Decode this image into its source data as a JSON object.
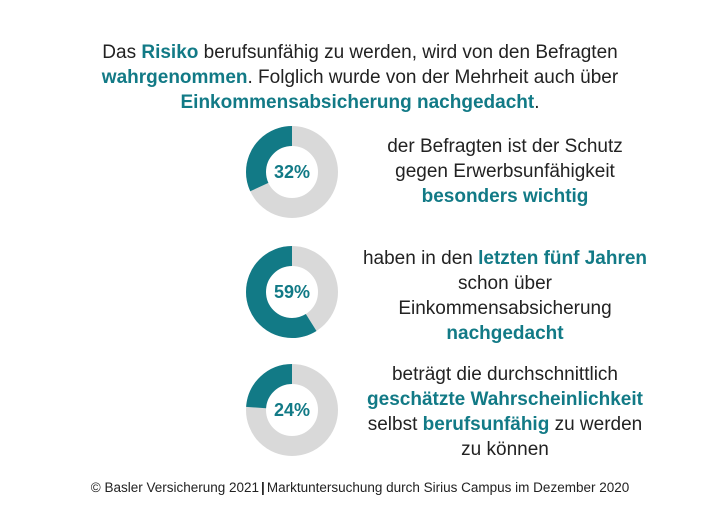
{
  "headline": {
    "p1": "Das ",
    "p2": "Risiko",
    "p3": " berufsunfähig zu werden, wird von den Befragten ",
    "p4": "wahrgenommen",
    "p5": ". Folglich wurde von der Mehrheit auch über ",
    "p6": "Einkommensabsicherung nachgedacht",
    "p7": "."
  },
  "chart_data": {
    "type": "pie",
    "variant": "donut",
    "colors": {
      "value": "#127a86",
      "rest": "#d9d9d9"
    },
    "items": [
      {
        "value": 32,
        "label": "32%",
        "desc": {
          "a": "der Befragten ist der Schutz gegen Erwerbsunfähigkeit ",
          "b": "besonders wichtig",
          "c": "",
          "d": "",
          "e": ""
        }
      },
      {
        "value": 59,
        "label": "59%",
        "desc": {
          "a": "haben in den ",
          "b": "letzten fünf Jahren",
          "c": " schon über Einkommensabsicherung ",
          "d": "nachgedacht",
          "e": ""
        }
      },
      {
        "value": 24,
        "label": "24%",
        "desc": {
          "a": "beträgt die durchschnittlich ",
          "b": "geschätzte Wahrscheinlichkeit",
          "c": " selbst ",
          "d": "berufsunfähig",
          "e": " zu werden zu können"
        }
      }
    ]
  },
  "footer": {
    "left": "© Basler Versicherung 2021",
    "sep": "|",
    "right": "Marktuntersuchung durch Sirius Campus im Dezember 2020"
  }
}
